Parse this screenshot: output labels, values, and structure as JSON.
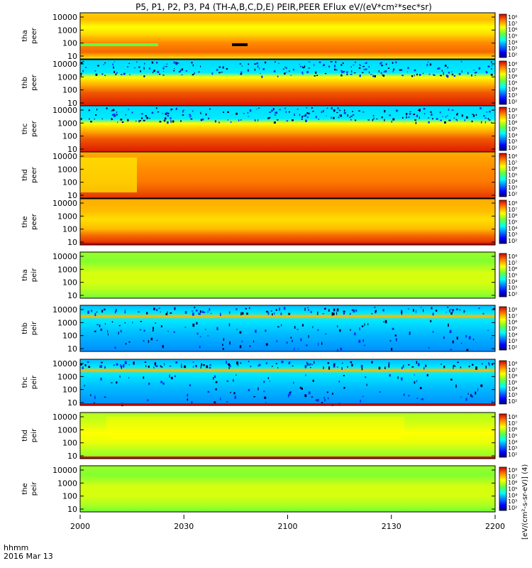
{
  "chart_data": {
    "type": "heatmap",
    "title": "P5, P1, P2, P3, P4 (TH-A,B,C,D,E) PEIR,PEER EFlux eV/(eV*cm²*sec*sr)",
    "xaxis": {
      "label": "hhmm",
      "date": "2016 Mar 13",
      "ticks": [
        "2000",
        "2030",
        "2100",
        "2130",
        "2200"
      ]
    },
    "yticks": [
      "10",
      "100",
      "1000",
      "10000"
    ],
    "colorbar_ticks": [
      "10²",
      "10³",
      "10⁴",
      "10⁵",
      "10⁶",
      "10⁷",
      "10⁸"
    ],
    "colorbar_label": "[eV/(cm²-s-sr-eV)] (4)",
    "panels": [
      {
        "id": "tha-peer",
        "probe": "tha",
        "species": "peer",
        "style": "electron-a"
      },
      {
        "id": "thb-peer",
        "probe": "thb",
        "species": "peer",
        "style": "electron-bc"
      },
      {
        "id": "thc-peer",
        "probe": "thc",
        "species": "peer",
        "style": "electron-bc"
      },
      {
        "id": "thd-peer",
        "probe": "thd",
        "species": "peer",
        "style": "electron-d"
      },
      {
        "id": "the-peer",
        "probe": "the",
        "species": "peer",
        "style": "electron-e"
      },
      {
        "id": "tha-peir",
        "probe": "tha",
        "species": "peir",
        "style": "ion-green"
      },
      {
        "id": "thb-peir",
        "probe": "thb",
        "species": "peir",
        "style": "ion-noisy"
      },
      {
        "id": "thc-peir",
        "probe": "thc",
        "species": "peir",
        "style": "ion-noisy"
      },
      {
        "id": "thd-peir",
        "probe": "thd",
        "species": "peir",
        "style": "ion-yellow"
      },
      {
        "id": "the-peir",
        "probe": "the",
        "species": "peir",
        "style": "ion-green"
      }
    ]
  }
}
